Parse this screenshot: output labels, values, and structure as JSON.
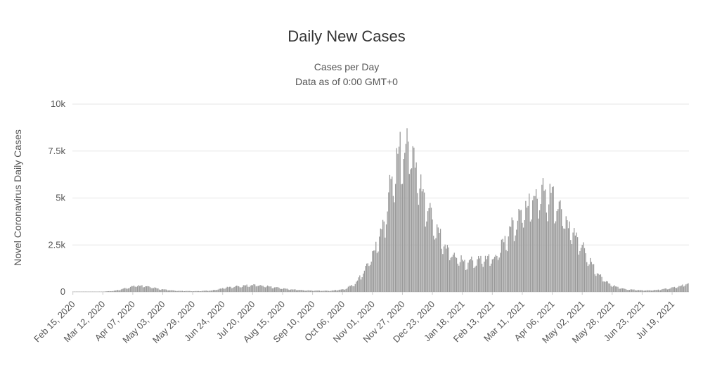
{
  "chart_data": {
    "type": "bar",
    "title": "Daily New Cases",
    "subtitle_lines": [
      "Cases per Day",
      "Data as of 0:00 GMT+0"
    ],
    "ylabel": "Novel Coronavirus Daily Cases",
    "xlabel": "",
    "bar_color": "#999999",
    "grid": true,
    "legend": "none",
    "ylim": [
      0,
      10000
    ],
    "yticks": [
      {
        "value": 0,
        "label": "0"
      },
      {
        "value": 2500,
        "label": "2.5k"
      },
      {
        "value": 5000,
        "label": "5k"
      },
      {
        "value": 7500,
        "label": "7.5k"
      },
      {
        "value": 10000,
        "label": "10k"
      }
    ],
    "x_start": "2020-02-15",
    "x_end": "2021-08-02",
    "xticks": [
      {
        "date": "2020-02-15",
        "label": "Feb 15, 2020"
      },
      {
        "date": "2020-03-12",
        "label": "Mar 12, 2020"
      },
      {
        "date": "2020-04-07",
        "label": "Apr 07, 2020"
      },
      {
        "date": "2020-05-03",
        "label": "May 03, 2020"
      },
      {
        "date": "2020-05-29",
        "label": "May 29, 2020"
      },
      {
        "date": "2020-06-24",
        "label": "Jun 24, 2020"
      },
      {
        "date": "2020-07-20",
        "label": "Jul 20, 2020"
      },
      {
        "date": "2020-08-15",
        "label": "Aug 15, 2020"
      },
      {
        "date": "2020-09-10",
        "label": "Sep 10, 2020"
      },
      {
        "date": "2020-10-06",
        "label": "Oct 06, 2020"
      },
      {
        "date": "2020-11-01",
        "label": "Nov 01, 2020"
      },
      {
        "date": "2020-11-27",
        "label": "Nov 27, 2020"
      },
      {
        "date": "2020-12-23",
        "label": "Dec 23, 2020"
      },
      {
        "date": "2021-01-18",
        "label": "Jan 18, 2021"
      },
      {
        "date": "2021-02-13",
        "label": "Feb 13, 2021"
      },
      {
        "date": "2021-03-11",
        "label": "Mar 11, 2021"
      },
      {
        "date": "2021-04-06",
        "label": "Apr 06, 2021"
      },
      {
        "date": "2021-05-02",
        "label": "May 02, 2021"
      },
      {
        "date": "2021-05-28",
        "label": "May 28, 2021"
      },
      {
        "date": "2021-06-23",
        "label": "Jun 23, 2021"
      },
      {
        "date": "2021-07-19",
        "label": "Jul 19, 2021"
      }
    ],
    "series": [
      {
        "name": "Daily Cases",
        "keypoints": [
          {
            "date": "2020-02-15",
            "value": 0
          },
          {
            "date": "2020-03-10",
            "value": 10
          },
          {
            "date": "2020-03-22",
            "value": 60
          },
          {
            "date": "2020-04-01",
            "value": 200
          },
          {
            "date": "2020-04-10",
            "value": 350
          },
          {
            "date": "2020-04-20",
            "value": 300
          },
          {
            "date": "2020-05-01",
            "value": 150
          },
          {
            "date": "2020-05-15",
            "value": 60
          },
          {
            "date": "2020-06-01",
            "value": 40
          },
          {
            "date": "2020-06-15",
            "value": 80
          },
          {
            "date": "2020-06-28",
            "value": 250
          },
          {
            "date": "2020-07-10",
            "value": 320
          },
          {
            "date": "2020-07-22",
            "value": 380
          },
          {
            "date": "2020-08-05",
            "value": 280
          },
          {
            "date": "2020-08-20",
            "value": 150
          },
          {
            "date": "2020-09-05",
            "value": 80
          },
          {
            "date": "2020-09-25",
            "value": 60
          },
          {
            "date": "2020-10-08",
            "value": 150
          },
          {
            "date": "2020-10-18",
            "value": 500
          },
          {
            "date": "2020-10-28",
            "value": 1500
          },
          {
            "date": "2020-11-05",
            "value": 2600
          },
          {
            "date": "2020-11-12",
            "value": 4000
          },
          {
            "date": "2020-11-18",
            "value": 6200
          },
          {
            "date": "2020-11-25",
            "value": 7500
          },
          {
            "date": "2020-12-01",
            "value": 7900
          },
          {
            "date": "2020-12-06",
            "value": 7600
          },
          {
            "date": "2020-12-12",
            "value": 5800
          },
          {
            "date": "2020-12-20",
            "value": 4400
          },
          {
            "date": "2020-12-28",
            "value": 3200
          },
          {
            "date": "2021-01-05",
            "value": 2300
          },
          {
            "date": "2021-01-12",
            "value": 1900
          },
          {
            "date": "2021-01-20",
            "value": 1600
          },
          {
            "date": "2021-01-30",
            "value": 1700
          },
          {
            "date": "2021-02-08",
            "value": 1850
          },
          {
            "date": "2021-02-15",
            "value": 1800
          },
          {
            "date": "2021-02-22",
            "value": 2600
          },
          {
            "date": "2021-03-02",
            "value": 3500
          },
          {
            "date": "2021-03-12",
            "value": 4400
          },
          {
            "date": "2021-03-22",
            "value": 5100
          },
          {
            "date": "2021-03-30",
            "value": 5400
          },
          {
            "date": "2021-04-05",
            "value": 5200
          },
          {
            "date": "2021-04-12",
            "value": 4600
          },
          {
            "date": "2021-04-20",
            "value": 3600
          },
          {
            "date": "2021-04-28",
            "value": 2900
          },
          {
            "date": "2021-05-05",
            "value": 2100
          },
          {
            "date": "2021-05-12",
            "value": 1300
          },
          {
            "date": "2021-05-20",
            "value": 700
          },
          {
            "date": "2021-05-28",
            "value": 350
          },
          {
            "date": "2021-06-08",
            "value": 150
          },
          {
            "date": "2021-06-25",
            "value": 80
          },
          {
            "date": "2021-07-05",
            "value": 100
          },
          {
            "date": "2021-07-15",
            "value": 180
          },
          {
            "date": "2021-07-25",
            "value": 300
          },
          {
            "date": "2021-08-02",
            "value": 450
          }
        ]
      }
    ]
  }
}
